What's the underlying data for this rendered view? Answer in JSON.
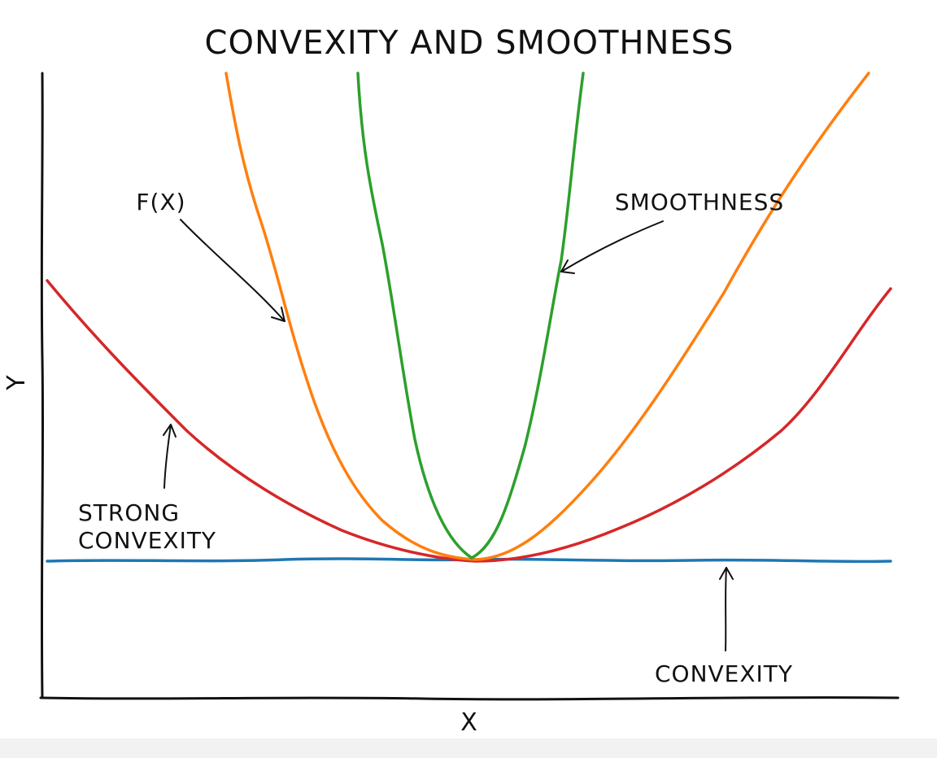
{
  "title": "CONVEXITY AND SMOOTHNESS",
  "axes": {
    "xlabel": "X",
    "ylabel": "Y"
  },
  "annotations": {
    "fx": "F(X)",
    "smoothness": "SMOOTHNESS",
    "strong_convexity_line1": "STRONG",
    "strong_convexity_line2": "CONVEXITY",
    "convexity": "CONVEXITY"
  },
  "colors": {
    "fx": "#ff7f0e",
    "smoothness": "#2ca02c",
    "strong_convexity": "#d62728",
    "convexity": "#1f77b4",
    "ink": "#111111"
  }
}
